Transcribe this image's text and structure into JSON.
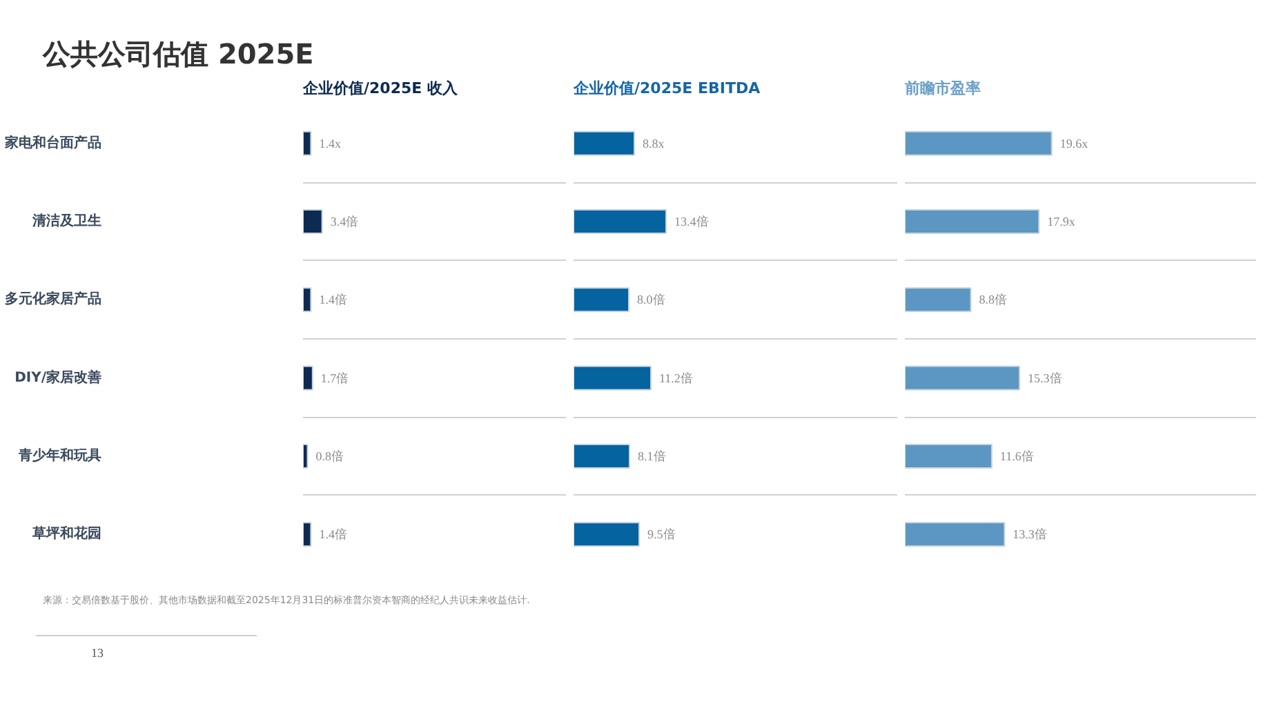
{
  "chart_data": [
    {
      "type": "bar",
      "orientation": "horizontal",
      "title": "企业价值/2025E 收入",
      "categories": [
        "家电和台面产品",
        "清洁及卫生",
        "多元化家居产品",
        "DIY/家居改善",
        "青少年和玩具",
        "草坪和花园"
      ],
      "values": [
        1.4,
        3.4,
        1.4,
        1.7,
        0.8,
        1.4
      ],
      "value_labels": [
        "1.4x",
        "3.4倍",
        "1.4倍",
        "1.7倍",
        "0.8倍",
        "1.4倍"
      ],
      "color": "#0d2a52",
      "xlim": [
        0,
        47
      ],
      "tick_labels": "y",
      "grid": "y",
      "annotations": [
        "公共公司估值 2025E",
        "来源：交易倍数基于股价、其他市场数据和截至2025年12月31日的标准普尔资本智商的经纪人共识未来收益估计.",
        "13"
      ]
    },
    {
      "type": "bar",
      "orientation": "horizontal",
      "title": "企业价值/2025E EBITDA",
      "values": [
        8.8,
        13.4,
        8.0,
        11.2,
        8.1,
        9.5
      ],
      "value_labels": [
        "8.8x",
        "13.4倍",
        "8.0倍",
        "11.2倍",
        "8.1倍",
        "9.5倍"
      ],
      "color": "#0563a0",
      "xlim": [
        0,
        47
      ],
      "tick_labels": false,
      "grid": "y"
    },
    {
      "type": "bar",
      "orientation": "horizontal",
      "title": "前瞻市盈率",
      "values": [
        19.6,
        17.9,
        8.8,
        15.3,
        11.6,
        13.3
      ],
      "value_labels": [
        "19.6x",
        "17.9x",
        "8.8倍",
        "15.3倍",
        "11.6倍",
        "13.3倍"
      ],
      "color": "#5b97c2",
      "xlim": [
        0,
        47
      ],
      "tick_labels": false,
      "grid": "y"
    }
  ]
}
